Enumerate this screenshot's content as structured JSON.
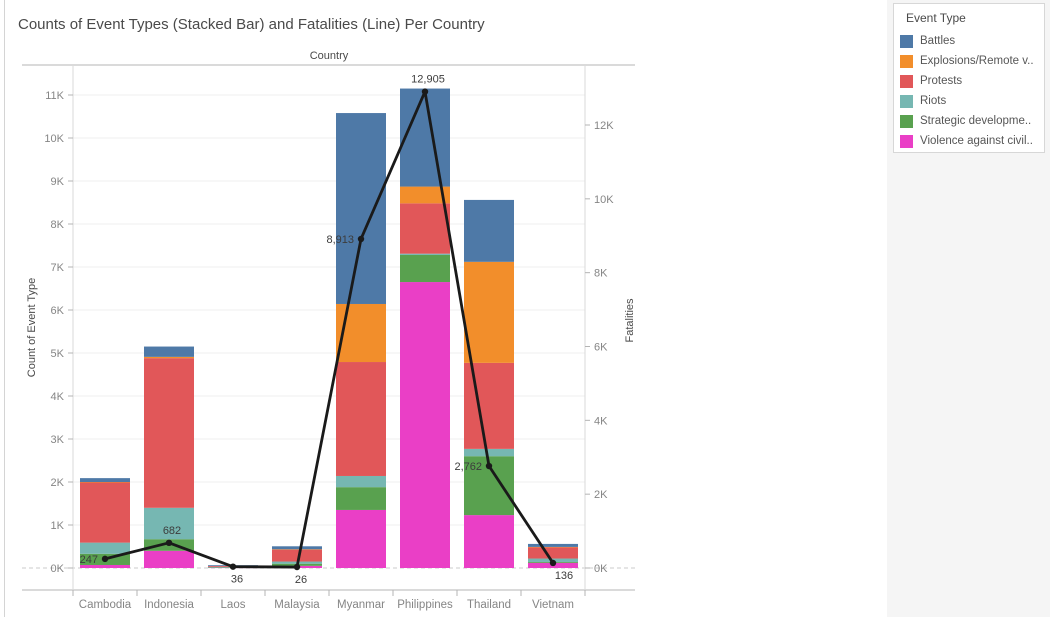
{
  "title": "Counts of Event Types (Stacked Bar) and Fatalities (Line) Per Country",
  "legend": {
    "title": "Event Type",
    "items": [
      {
        "label": "Battles",
        "color": "#4e79a7"
      },
      {
        "label": "Explosions/Remote v..",
        "color": "#f28e2b"
      },
      {
        "label": "Protests",
        "color": "#e15759"
      },
      {
        "label": "Riots",
        "color": "#76b7b2"
      },
      {
        "label": "Strategic developme..",
        "color": "#59a14f"
      },
      {
        "label": "Violence against civil..",
        "color": "#ea3fc6"
      }
    ]
  },
  "chart_data": {
    "type": "combo (stacked bar + line)",
    "title": "Counts of Event Types (Stacked Bar) and Fatalities (Line) Per Country",
    "column_header": "Country",
    "categories": [
      "Cambodia",
      "Indonesia",
      "Laos",
      "Malaysia",
      "Myanmar",
      "Philippines",
      "Thailand",
      "Vietnam"
    ],
    "bar_series": [
      {
        "name": "Violence against civilians",
        "color": "#ea3fc6",
        "values": [
          70,
          400,
          10,
          50,
          1350,
          6650,
          1230,
          120
        ]
      },
      {
        "name": "Strategic developments",
        "color": "#59a14f",
        "values": [
          260,
          270,
          5,
          50,
          530,
          630,
          1370,
          20
        ]
      },
      {
        "name": "Riots",
        "color": "#76b7b2",
        "values": [
          260,
          730,
          10,
          50,
          260,
          30,
          170,
          80
        ]
      },
      {
        "name": "Protests",
        "color": "#e15759",
        "values": [
          1400,
          3480,
          20,
          280,
          2650,
          1170,
          2000,
          260
        ]
      },
      {
        "name": "Explosions/Remote violence",
        "color": "#f28e2b",
        "values": [
          10,
          30,
          0,
          5,
          1350,
          390,
          2350,
          10
        ]
      },
      {
        "name": "Battles",
        "color": "#4e79a7",
        "values": [
          90,
          240,
          20,
          70,
          4440,
          2280,
          1440,
          70
        ]
      }
    ],
    "line_series": {
      "name": "Fatalities",
      "color": "#1a1a1a",
      "values": [
        247,
        682,
        36,
        26,
        8913,
        12905,
        2762,
        136
      ],
      "labels": [
        "247",
        "682",
        "36",
        "26",
        "8,913",
        "12,905",
        "2,762",
        "136"
      ],
      "label_pos": [
        "left",
        "above",
        "below",
        "below",
        "left",
        "above",
        "left",
        "below-right"
      ]
    },
    "left_axis": {
      "title": "Count of Event Type",
      "range_k": [
        0,
        11
      ],
      "ticks": [
        {
          "label": "0K",
          "value": 0
        },
        {
          "label": "1K",
          "value": 1000
        },
        {
          "label": "2K",
          "value": 2000
        },
        {
          "label": "3K",
          "value": 3000
        },
        {
          "label": "4K",
          "value": 4000
        },
        {
          "label": "5K",
          "value": 5000
        },
        {
          "label": "6K",
          "value": 6000
        },
        {
          "label": "7K",
          "value": 7000
        },
        {
          "label": "8K",
          "value": 8000
        },
        {
          "label": "9K",
          "value": 9000
        },
        {
          "label": "10K",
          "value": 10000
        },
        {
          "label": "11K",
          "value": 11000
        }
      ]
    },
    "right_axis": {
      "title": "Fatalities",
      "range_k": [
        0,
        12
      ],
      "ticks": [
        {
          "label": "0K",
          "value": 0
        },
        {
          "label": "2K",
          "value": 2000
        },
        {
          "label": "4K",
          "value": 4000
        },
        {
          "label": "6K",
          "value": 6000
        },
        {
          "label": "8K",
          "value": 8000
        },
        {
          "label": "10K",
          "value": 10000
        },
        {
          "label": "12K",
          "value": 12000
        }
      ]
    },
    "grid": true,
    "legend_position": "top-right"
  }
}
